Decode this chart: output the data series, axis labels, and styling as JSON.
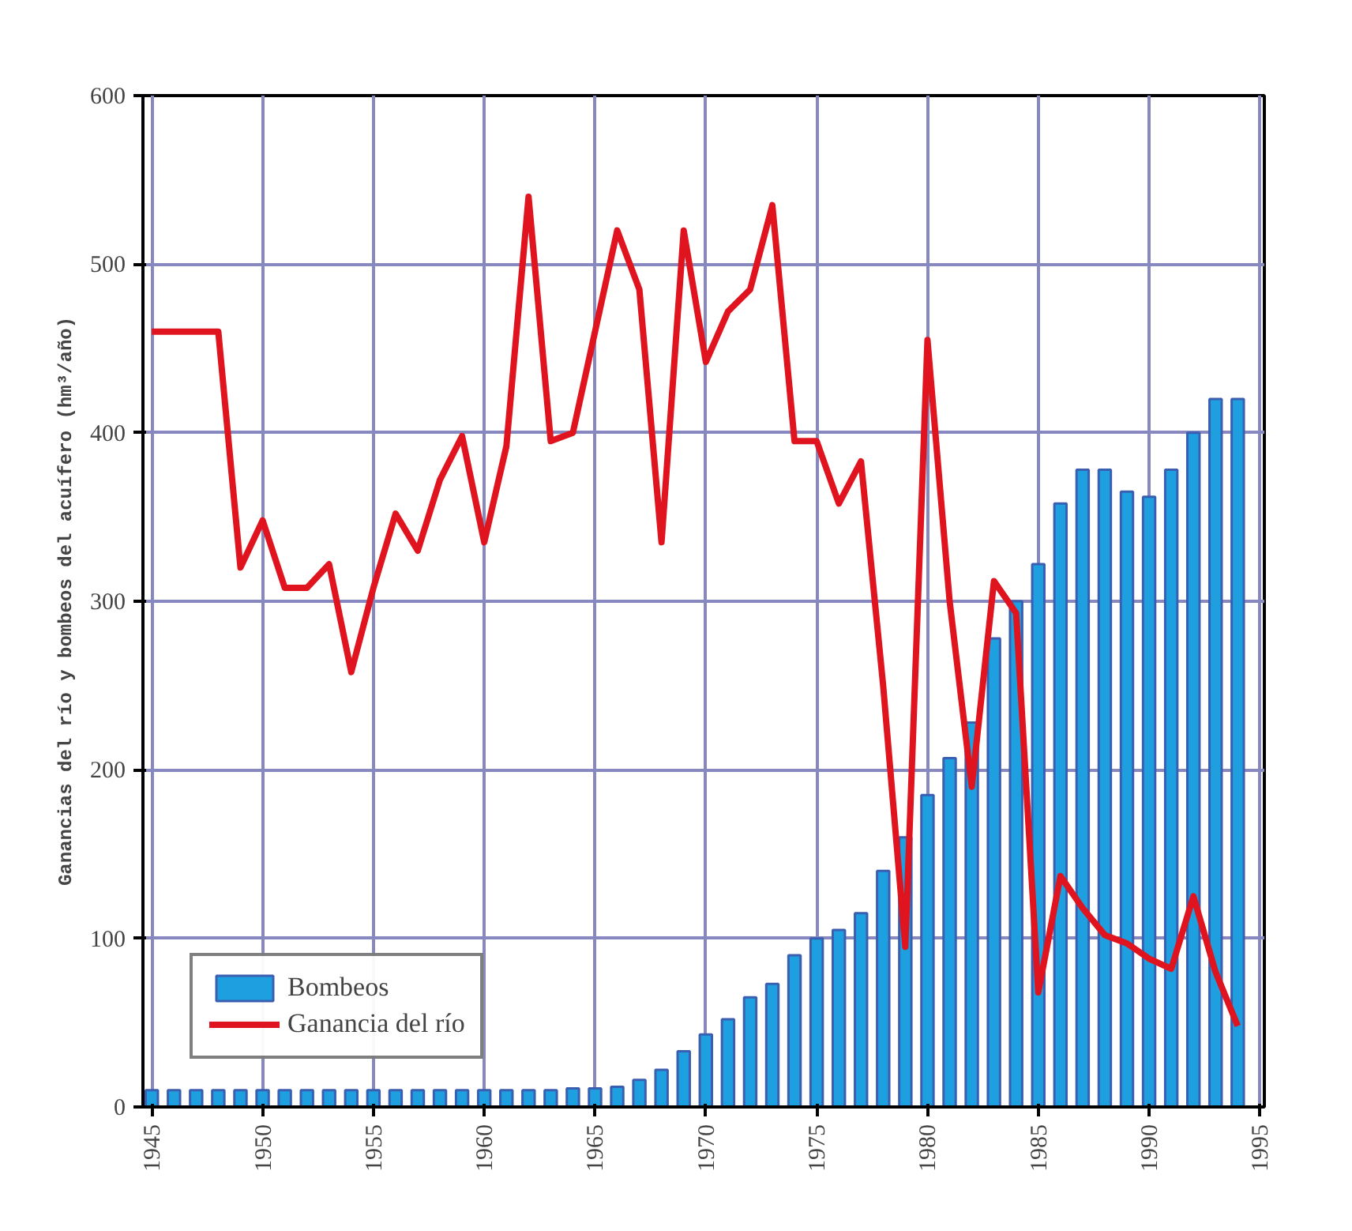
{
  "chart_data": {
    "type": "bar",
    "ylabel": "Ganancias del río y bombeos del acuífero (hm³/año)",
    "x": [
      1945,
      1946,
      1947,
      1948,
      1949,
      1950,
      1951,
      1952,
      1953,
      1954,
      1955,
      1956,
      1957,
      1958,
      1959,
      1960,
      1961,
      1962,
      1963,
      1964,
      1965,
      1966,
      1967,
      1968,
      1969,
      1970,
      1971,
      1972,
      1973,
      1974,
      1975,
      1976,
      1977,
      1978,
      1979,
      1980,
      1981,
      1982,
      1983,
      1984,
      1985,
      1986,
      1987,
      1988,
      1989,
      1990,
      1991,
      1992,
      1993,
      1994
    ],
    "series": [
      {
        "name": "Bombeos",
        "color": "#1ea0e0",
        "values": [
          10,
          10,
          10,
          10,
          10,
          10,
          10,
          10,
          10,
          10,
          10,
          10,
          10,
          10,
          10,
          10,
          10,
          10,
          10,
          11,
          11,
          12,
          16,
          22,
          33,
          43,
          52,
          65,
          73,
          90,
          100,
          105,
          115,
          140,
          160,
          185,
          207,
          228,
          278,
          300,
          322,
          358,
          378,
          378,
          365,
          362,
          378,
          400,
          420,
          420
        ]
      },
      {
        "name": "Ganancia del río",
        "type": "line",
        "color": "#e0141e",
        "values": [
          460,
          460,
          460,
          460,
          320,
          348,
          308,
          308,
          322,
          258,
          308,
          352,
          330,
          372,
          398,
          335,
          392,
          540,
          395,
          400,
          460,
          520,
          485,
          335,
          520,
          442,
          472,
          485,
          535,
          395,
          395,
          358,
          383,
          250,
          95,
          455,
          300,
          190,
          312,
          293,
          68,
          137,
          118,
          102,
          97,
          88,
          82,
          125,
          80,
          48
        ]
      }
    ],
    "xlim": [
      1944.6,
      1995.2
    ],
    "xticks": [
      1945,
      1950,
      1955,
      1960,
      1965,
      1970,
      1975,
      1980,
      1985,
      1990,
      1995
    ],
    "ylim": [
      0,
      600
    ],
    "yticks": [
      0,
      100,
      200,
      300,
      400,
      500,
      600
    ],
    "grid": true,
    "legend": "bottom left"
  }
}
